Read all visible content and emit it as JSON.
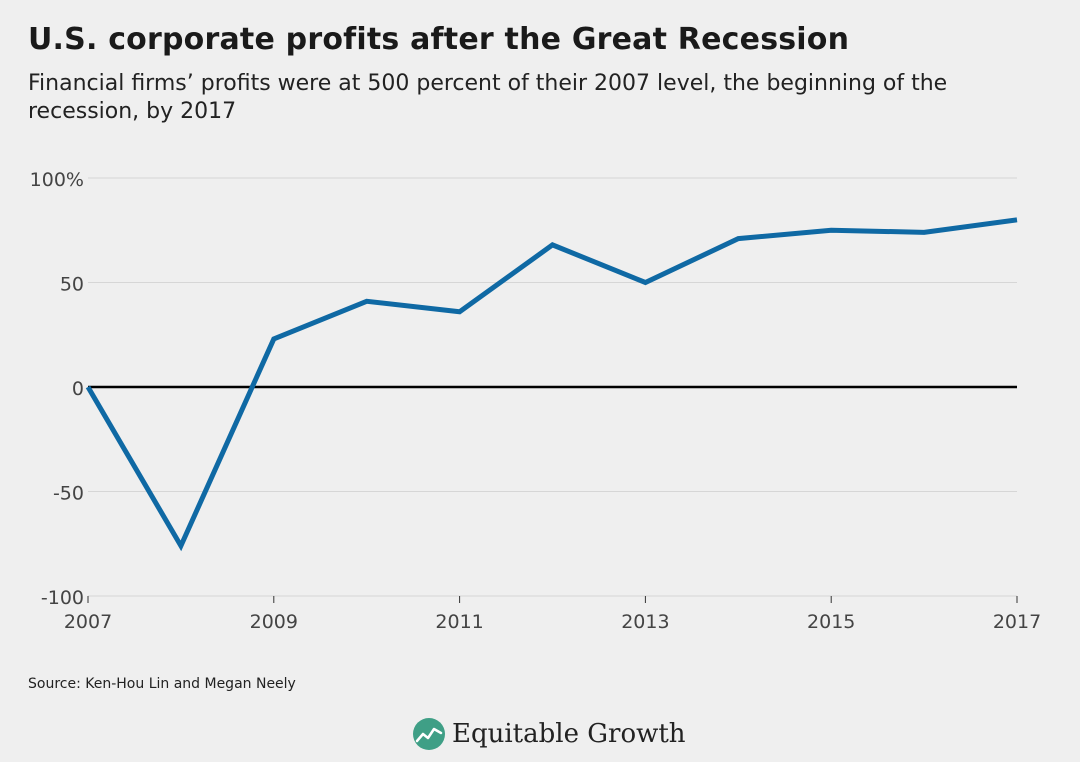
{
  "chart_data": {
    "type": "line",
    "title": "U.S. corporate profits after the Great Recession",
    "subtitle": "Financial firms’ profits were at 500 percent of their 2007 level, the beginning of the recession, by 2017",
    "source": "Source: Ken-Hou Lin and Megan Neely",
    "x": [
      2007,
      2008,
      2009,
      2010,
      2011,
      2012,
      2013,
      2014,
      2015,
      2016,
      2017
    ],
    "x_ticks": [
      "2007",
      "2009",
      "2011",
      "2013",
      "2015",
      "2017"
    ],
    "y_ticks": [
      "100%",
      "50",
      "0",
      "-50",
      "-100"
    ],
    "y_tick_values": [
      100,
      50,
      0,
      -50,
      -100
    ],
    "ylim": [
      -100,
      100
    ],
    "xlim": [
      2007,
      2017
    ],
    "grid": true,
    "series": [
      {
        "color": "#0f69a4",
        "values": [
          0,
          -76,
          23,
          41,
          36,
          68,
          50,
          71,
          75,
          74,
          80
        ]
      }
    ]
  },
  "brand": {
    "name": "Equitable Growth",
    "logo_icon": "equitable-growth-logo",
    "logo_color": "#3f9f86"
  }
}
